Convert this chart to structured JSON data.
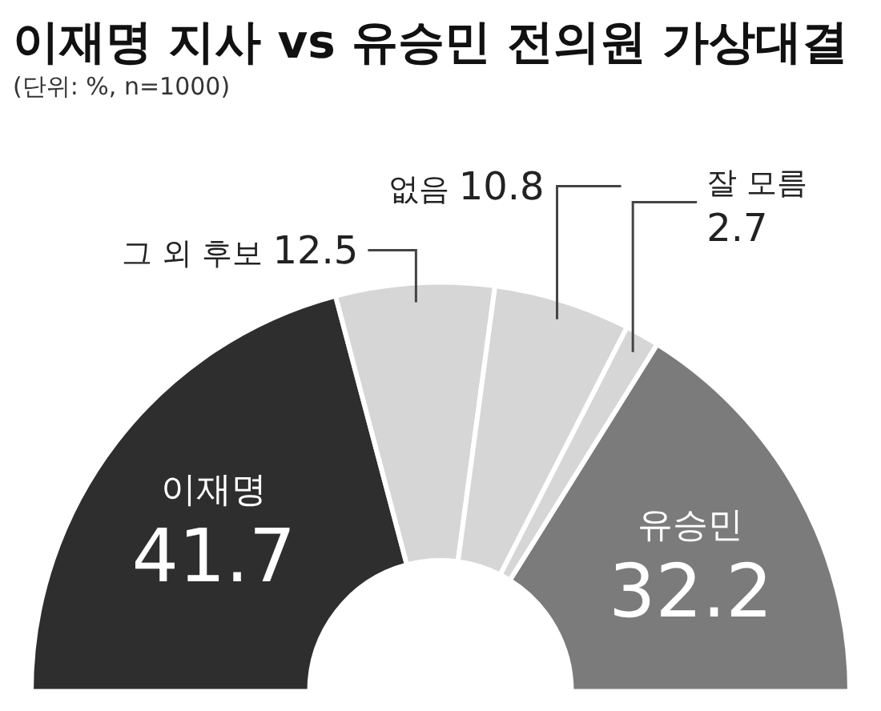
{
  "chart_data": {
    "type": "donut",
    "title": "이재명 지사 vs 유승민 전의원 가상대결",
    "subtitle": "(단위: %, n=1000)",
    "categories": [
      "이재명",
      "그 외 후보",
      "없음",
      "잘 모름",
      "유승민"
    ],
    "values": [
      41.7,
      12.5,
      10.8,
      2.7,
      32.2
    ],
    "colors": [
      "#2e2e2e",
      "#d6d6d6",
      "#d6d6d6",
      "#d6d6d6",
      "#7b7b7b"
    ],
    "data_labels": true,
    "legend": false
  }
}
